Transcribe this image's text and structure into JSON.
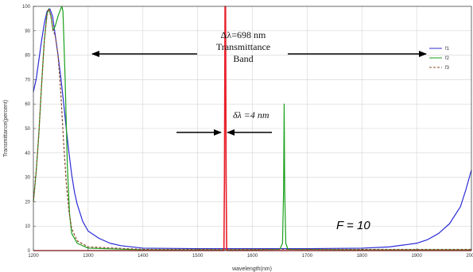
{
  "chart_data": {
    "type": "line",
    "xlabel": "wavelength(nm)",
    "ylabel": "Transmittance(percent)",
    "xlim": [
      1200,
      2000
    ],
    "ylim": [
      0,
      100
    ],
    "x_ticks": [
      "1200",
      "1300",
      "1400",
      "1500",
      "1600",
      "1700",
      "1800",
      "1900",
      "2000"
    ],
    "y_ticks": [
      "0",
      "10",
      "20",
      "30",
      "40",
      "50",
      "60",
      "70",
      "80",
      "90",
      "100"
    ],
    "grid": true,
    "legend_position": "right",
    "series": [
      {
        "name": "f1",
        "color": "#2b2bd6",
        "dash": "solid",
        "points": [
          [
            1200,
            65
          ],
          [
            1205,
            70
          ],
          [
            1210,
            78
          ],
          [
            1215,
            86
          ],
          [
            1220,
            93
          ],
          [
            1225,
            98
          ],
          [
            1230,
            99
          ],
          [
            1235,
            96
          ],
          [
            1240,
            88
          ],
          [
            1245,
            80
          ],
          [
            1250,
            71
          ],
          [
            1255,
            61
          ],
          [
            1260,
            50
          ],
          [
            1265,
            40
          ],
          [
            1270,
            31
          ],
          [
            1275,
            24
          ],
          [
            1280,
            19
          ],
          [
            1290,
            12
          ],
          [
            1300,
            8
          ],
          [
            1320,
            5
          ],
          [
            1340,
            3
          ],
          [
            1360,
            2
          ],
          [
            1400,
            1
          ],
          [
            1500,
            0.8
          ],
          [
            1600,
            0.8
          ],
          [
            1700,
            0.8
          ],
          [
            1800,
            1
          ],
          [
            1850,
            1.5
          ],
          [
            1900,
            3
          ],
          [
            1920,
            4.5
          ],
          [
            1940,
            7
          ],
          [
            1960,
            11
          ],
          [
            1980,
            18
          ],
          [
            1990,
            25
          ],
          [
            2000,
            33
          ]
        ]
      },
      {
        "name": "f2",
        "color": "#1aa01a",
        "dash": "solid",
        "points": [
          [
            1200,
            20
          ],
          [
            1205,
            32
          ],
          [
            1210,
            48
          ],
          [
            1215,
            68
          ],
          [
            1220,
            86
          ],
          [
            1225,
            97
          ],
          [
            1228,
            99
          ],
          [
            1232,
            96
          ],
          [
            1236,
            90
          ],
          [
            1240,
            92
          ],
          [
            1245,
            96
          ],
          [
            1250,
            99
          ],
          [
            1252,
            100
          ],
          [
            1254,
            98
          ],
          [
            1258,
            70
          ],
          [
            1262,
            35
          ],
          [
            1266,
            15
          ],
          [
            1270,
            7
          ],
          [
            1280,
            3
          ],
          [
            1300,
            1
          ],
          [
            1400,
            0.3
          ],
          [
            1600,
            0.3
          ],
          [
            1650,
            0.5
          ],
          [
            1655,
            3
          ],
          [
            1657,
            25
          ],
          [
            1658,
            60
          ],
          [
            1659,
            25
          ],
          [
            1661,
            3
          ],
          [
            1665,
            0.5
          ],
          [
            1800,
            0.3
          ],
          [
            2000,
            0.3
          ]
        ]
      },
      {
        "name": "f3",
        "color": "#8a4a2a",
        "dash": "dashed",
        "points": [
          [
            1200,
            20
          ],
          [
            1205,
            32
          ],
          [
            1210,
            48
          ],
          [
            1215,
            68
          ],
          [
            1220,
            86
          ],
          [
            1225,
            97
          ],
          [
            1228,
            99
          ],
          [
            1232,
            96
          ],
          [
            1236,
            90
          ],
          [
            1240,
            88
          ],
          [
            1245,
            80
          ],
          [
            1250,
            65
          ],
          [
            1255,
            45
          ],
          [
            1260,
            28
          ],
          [
            1265,
            16
          ],
          [
            1270,
            9
          ],
          [
            1280,
            4
          ],
          [
            1300,
            1.5
          ],
          [
            1400,
            0.5
          ],
          [
            1600,
            0.5
          ],
          [
            1800,
            0.5
          ],
          [
            2000,
            0.5
          ]
        ]
      },
      {
        "name": "",
        "color": "#e8202a",
        "dash": "solid",
        "points": [
          [
            1200,
            0
          ],
          [
            1548,
            0
          ],
          [
            1549,
            30
          ],
          [
            1550,
            100
          ],
          [
            1551,
            100
          ],
          [
            1552,
            30
          ],
          [
            1553,
            0
          ],
          [
            2000,
            0
          ]
        ]
      }
    ],
    "annotations": {
      "band_label_1": "Δλ=698 nm",
      "band_label_2": "Transmittance",
      "band_label_3": "Band",
      "delta_label": "δλ =4 nm",
      "f_label": "F = 10"
    }
  }
}
